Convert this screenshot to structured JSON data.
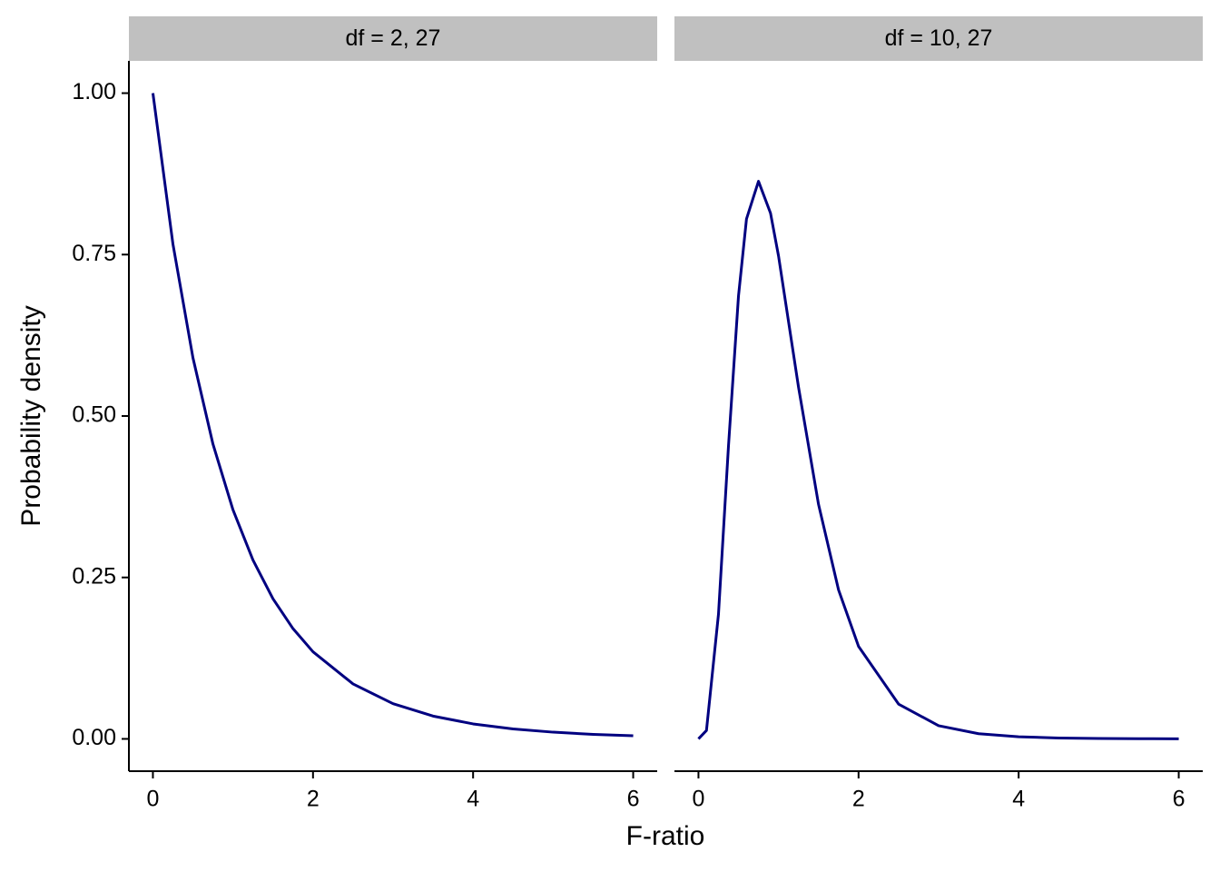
{
  "chart_data": [
    {
      "type": "line",
      "title": "df = 2, 27",
      "xlabel": "F-ratio",
      "ylabel": "Probability density",
      "x": [
        0,
        0.25,
        0.5,
        0.75,
        1,
        1.25,
        1.5,
        1.75,
        2,
        2.5,
        3,
        3.5,
        4,
        4.5,
        5,
        5.5,
        6
      ],
      "series": [
        {
          "color": "#000080",
          "values": [
            1,
            0.7664,
            0.5902,
            0.4566,
            0.3548,
            0.2769,
            0.217,
            0.1708,
            0.1349,
            0.0851,
            0.0545,
            0.0353,
            0.0232,
            0.0154,
            0.0104,
            0.007,
            0.0048
          ]
        }
      ],
      "xlim": [
        -0.3,
        6.3
      ],
      "xticks": [
        0,
        2,
        4,
        6
      ],
      "ylim": [
        -0.05,
        1.05
      ],
      "yticks": [
        {
          "value": 0,
          "label": "0.00"
        },
        {
          "value": 0.25,
          "label": "0.25"
        },
        {
          "value": 0.5,
          "label": "0.50"
        },
        {
          "value": 0.75,
          "label": "0.75"
        },
        {
          "value": 1,
          "label": "1.00"
        }
      ]
    },
    {
      "type": "line",
      "title": "df = 10, 27",
      "x": [
        0,
        0.1,
        0.25,
        0.375,
        0.5,
        0.6,
        0.75,
        0.9,
        1,
        1.25,
        1.5,
        1.75,
        2,
        2.5,
        3,
        3.5,
        4,
        4.5,
        5,
        5.5,
        6
      ],
      "series": [
        {
          "color": "#000080",
          "values": [
            0,
            0.013,
            0.1931,
            0.4535,
            0.6859,
            0.8051,
            0.8635,
            0.8142,
            0.748,
            0.5447,
            0.3631,
            0.2308,
            0.1432,
            0.0539,
            0.0204,
            0.008,
            0.0033,
            0.0014,
            0.0006,
            0.0003,
            0.0001
          ]
        }
      ],
      "xlim": [
        -0.3,
        6.3
      ],
      "xticks": [
        0,
        2,
        4,
        6
      ],
      "ylim": [
        -0.05,
        1.05
      ]
    }
  ]
}
